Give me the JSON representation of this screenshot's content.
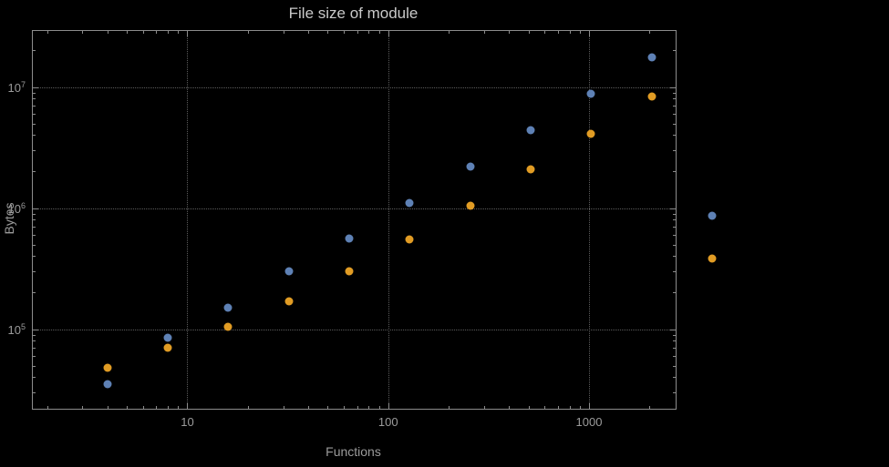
{
  "page": {
    "background": "#000000"
  },
  "chart_data": {
    "type": "scatter",
    "title": "File size of module",
    "xlabel": "Functions",
    "ylabel": "Bytes",
    "x_scale": "log",
    "y_scale": "log",
    "grid": "dotted",
    "legend": "none",
    "xlim": [
      1.7,
      2700
    ],
    "ylim": [
      22000,
      29000000
    ],
    "x_major_ticks": [
      10,
      100,
      1000
    ],
    "x_major_tick_labels": [
      "10",
      "100",
      "1000"
    ],
    "y_major_tick_exponents": [
      5,
      6,
      7
    ],
    "y_tick_base": "10",
    "x": [
      4,
      8,
      16,
      32,
      64,
      128,
      256,
      512,
      1024,
      2048,
      4096
    ],
    "series": [
      {
        "name": "series-1-blue",
        "color": "#5E81B5",
        "values": [
          35000,
          85000,
          150000,
          300000,
          560000,
          1100000,
          2200000,
          4400000,
          8800000,
          17500000,
          870000
        ]
      },
      {
        "name": "series-2-orange",
        "color": "#E19C24",
        "values": [
          48000,
          70000,
          105000,
          170000,
          300000,
          550000,
          1050000,
          2100000,
          4100000,
          8300000,
          380000
        ]
      }
    ],
    "style": {
      "frame_color": "#8c8c8c",
      "grid_color": "#5c5c5c",
      "text_color": "#9b9b9b",
      "title_color": "#c9c9c9",
      "background": "#000000"
    }
  }
}
